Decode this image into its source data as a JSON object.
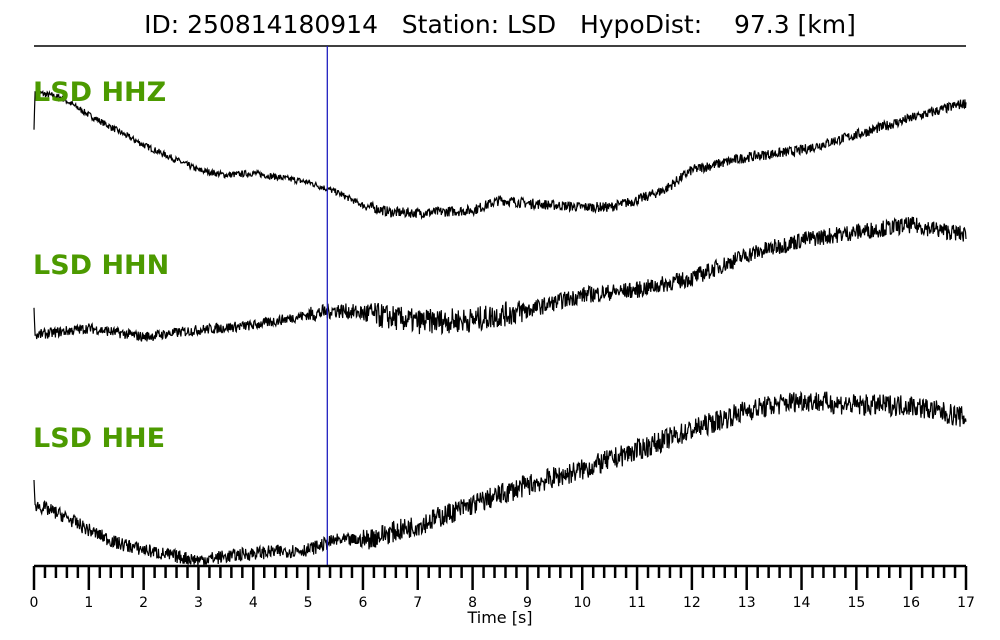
{
  "chart_data": {
    "type": "line",
    "title": "ID: 250814180914   Station: LSD   HypoDist:    97.3 [km]",
    "xlabel": "Time [s]",
    "ylabel": "",
    "xlim": [
      0,
      17
    ],
    "xticks": [
      "0",
      "1",
      "2",
      "3",
      "4",
      "5",
      "6",
      "7",
      "8",
      "9",
      "10",
      "11",
      "12",
      "13",
      "14",
      "15",
      "16",
      "17"
    ],
    "minor_tick_step": 0.2,
    "grid": false,
    "marker_line": {
      "x": 5.35,
      "color": "#1f1fbf"
    },
    "label_color": "#4c9a00",
    "trace_color": "#000000",
    "series": [
      {
        "name": "LSD HHZ",
        "noise": 0.05,
        "points": [
          [
            0,
            0.38
          ],
          [
            0.02,
            0.97
          ],
          [
            0.5,
            0.88
          ],
          [
            1,
            0.61
          ],
          [
            2,
            0.14
          ],
          [
            3,
            -0.25
          ],
          [
            3.5,
            -0.33
          ],
          [
            4,
            -0.3
          ],
          [
            5,
            -0.44
          ],
          [
            5.5,
            -0.59
          ],
          [
            6,
            -0.8
          ],
          [
            6.5,
            -0.91
          ],
          [
            7,
            -0.92
          ],
          [
            8,
            -0.88
          ],
          [
            8.5,
            -0.72
          ],
          [
            9,
            -0.77
          ],
          [
            10,
            -0.83
          ],
          [
            10.5,
            -0.83
          ],
          [
            11,
            -0.72
          ],
          [
            11.5,
            -0.56
          ],
          [
            12,
            -0.25
          ],
          [
            13,
            -0.05
          ],
          [
            14,
            0.06
          ],
          [
            15,
            0.3
          ],
          [
            16,
            0.56
          ],
          [
            17,
            0.8
          ]
        ]
      },
      {
        "name": "LSD HHN",
        "noise": 0.09,
        "points": [
          [
            0,
            -0.48
          ],
          [
            0.02,
            -0.95
          ],
          [
            1,
            -0.83
          ],
          [
            2,
            -0.98
          ],
          [
            3,
            -0.86
          ],
          [
            4,
            -0.78
          ],
          [
            5,
            -0.6
          ],
          [
            5.5,
            -0.52
          ],
          [
            6,
            -0.57
          ],
          [
            7,
            -0.72
          ],
          [
            8,
            -0.69
          ],
          [
            9,
            -0.52
          ],
          [
            10,
            -0.26
          ],
          [
            11,
            -0.17
          ],
          [
            12,
            0.03
          ],
          [
            13,
            0.43
          ],
          [
            14,
            0.69
          ],
          [
            15,
            0.83
          ],
          [
            16,
            0.95
          ],
          [
            17,
            0.78
          ]
        ]
      },
      {
        "name": "LSD HHE",
        "noise": 0.08,
        "points": [
          [
            0,
            0.0
          ],
          [
            0.02,
            -0.29
          ],
          [
            0.5,
            -0.41
          ],
          [
            1,
            -0.59
          ],
          [
            1.5,
            -0.74
          ],
          [
            2,
            -0.82
          ],
          [
            2.5,
            -0.89
          ],
          [
            3,
            -0.94
          ],
          [
            4,
            -0.86
          ],
          [
            5,
            -0.82
          ],
          [
            5.5,
            -0.71
          ],
          [
            6,
            -0.71
          ],
          [
            7,
            -0.53
          ],
          [
            8,
            -0.29
          ],
          [
            9,
            -0.06
          ],
          [
            10,
            0.12
          ],
          [
            11,
            0.35
          ],
          [
            12,
            0.59
          ],
          [
            13,
            0.82
          ],
          [
            14,
            0.94
          ],
          [
            15,
            0.88
          ],
          [
            16,
            0.88
          ],
          [
            17,
            0.73
          ]
        ]
      }
    ]
  }
}
